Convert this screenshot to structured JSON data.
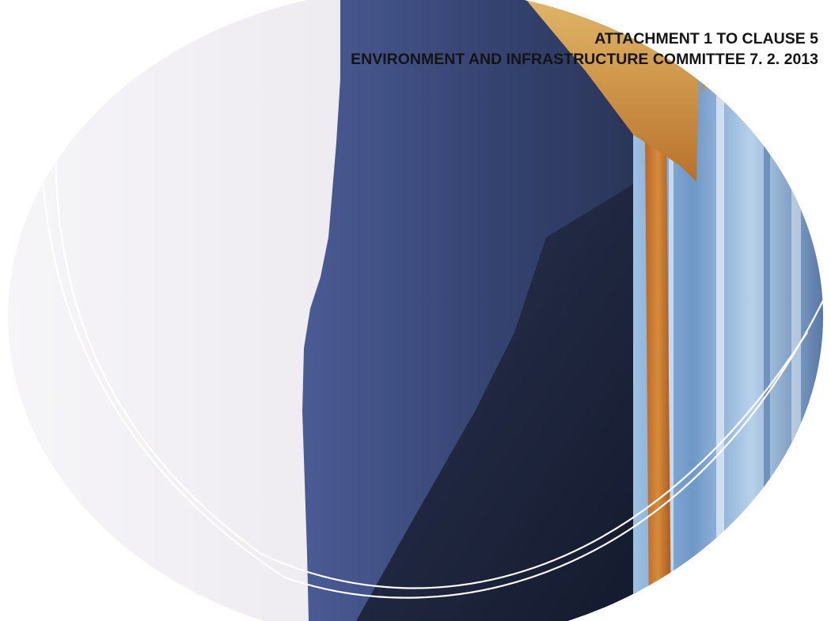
{
  "header": {
    "line1": "ATTACHMENT 1 TO CLAUSE 5",
    "line2": "ENVIRONMENT AND INFRASTRUCTURE COMMITTEE 7.  2. 2013"
  },
  "cover_image": {
    "description_icon": "landscape-photo",
    "colors": {
      "sky": "#ece8ee",
      "mountain": "#3f4f86",
      "mountain_dark": "#1c2540",
      "sand": "#c97a2e",
      "water": "#7ea7d3",
      "ring": "#ffffff"
    }
  }
}
